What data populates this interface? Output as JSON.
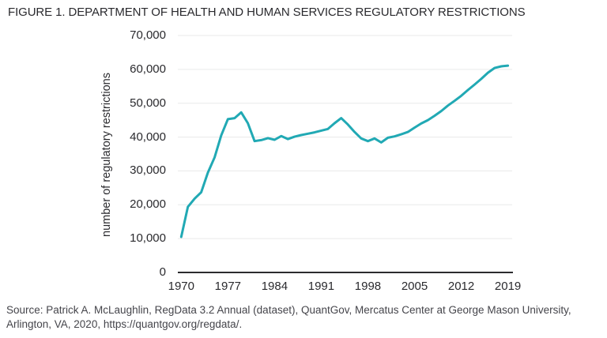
{
  "title": "FIGURE 1. DEPARTMENT OF HEALTH AND HUMAN SERVICES REGULATORY RESTRICTIONS",
  "source_note": "Source: Patrick A. McLaughlin, RegData 3.2 Annual (dataset), QuantGov, Mercatus Center at George Mason University, Arlington, VA, 2020, https://quantgov.org/regdata/.",
  "colors": {
    "line": "#21a9b4",
    "axis": "#2b2b2e",
    "gridline": "#e9eaea",
    "text": "#2a2a2e",
    "source_text": "#45454b",
    "background": "#ffffff"
  },
  "chart_data": {
    "type": "line",
    "title": "FIGURE 1. DEPARTMENT OF HEALTH AND HUMAN SERVICES REGULATORY RESTRICTIONS",
    "series_name": "HHS regulatory restrictions",
    "xlabel": "",
    "ylabel": "number of regulatory restrictions",
    "xlim": [
      1970,
      2019
    ],
    "ylim": [
      0,
      70000
    ],
    "grid": "horizontal",
    "legend": "none",
    "xtick_values": [
      1970,
      1977,
      1984,
      1991,
      1998,
      2005,
      2012,
      2019
    ],
    "xtick_labels": [
      "1970",
      "1977",
      "1984",
      "1991",
      "1998",
      "2005",
      "2012",
      "2019"
    ],
    "ytick_values": [
      70000,
      60000,
      50000,
      40000,
      30000,
      20000,
      10000,
      0
    ],
    "ytick_labels": [
      "70,000",
      "60,000",
      "50,000",
      "40,000",
      "30,000",
      "20,000",
      "10,000",
      "0"
    ],
    "x": [
      1970,
      1971,
      1972,
      1973,
      1974,
      1975,
      1976,
      1977,
      1978,
      1979,
      1980,
      1981,
      1982,
      1983,
      1984,
      1985,
      1986,
      1987,
      1988,
      1989,
      1990,
      1991,
      1992,
      1993,
      1994,
      1995,
      1996,
      1997,
      1998,
      1999,
      2000,
      2001,
      2002,
      2003,
      2004,
      2005,
      2006,
      2007,
      2008,
      2009,
      2010,
      2011,
      2012,
      2013,
      2014,
      2015,
      2016,
      2017,
      2018,
      2019
    ],
    "values": [
      10500,
      19400,
      21800,
      23700,
      29500,
      34000,
      40500,
      45300,
      45600,
      47300,
      44100,
      38800,
      39100,
      39700,
      39200,
      40300,
      39400,
      40100,
      40600,
      41000,
      41400,
      41900,
      42400,
      44100,
      45600,
      43700,
      41500,
      39600,
      38800,
      39600,
      38400,
      39800,
      40200,
      40800,
      41500,
      42800,
      44000,
      45000,
      46300,
      47700,
      49300,
      50700,
      52200,
      53900,
      55500,
      57200,
      59000,
      60400,
      60900,
      61100
    ]
  }
}
